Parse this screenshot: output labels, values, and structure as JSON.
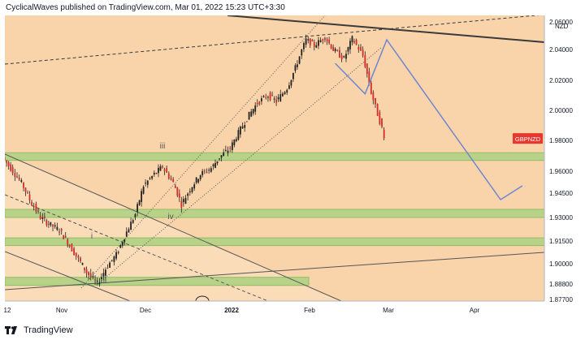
{
  "header": {
    "publisher": "CyclicalWaves published on TradingView.com, Mar 01, 2022 15:23 UTC+3:30"
  },
  "footer": {
    "brand": "TradingView",
    "logo_icon": "tradingview-logo-icon"
  },
  "colors": {
    "background": "#f9d4ab",
    "panel": "#fbe2c4",
    "zone_fill": "#b9d28a",
    "zone_border": "#8fbf60",
    "candle": "#d42b2b",
    "projection": "#6f86cf",
    "trendline": "#555555",
    "symbol_badge": "#e8372f"
  },
  "chart_data": {
    "type": "candlestick",
    "symbol": "GBPNZD",
    "currency": "NZD",
    "x_tick_labels": [
      "12",
      "Nov",
      "Dec",
      "2022",
      "Feb",
      "Mar",
      "Apr"
    ],
    "y_tick_labels": [
      "2.06000",
      "2.04000",
      "2.02000",
      "2.00000",
      "1.98000",
      "1.96000",
      "1.94500",
      "1.93000",
      "1.91500",
      "1.90000",
      "1.88800",
      "1.87700"
    ],
    "y_tick_values": [
      2.06,
      2.04,
      2.02,
      2.0,
      1.98,
      1.96,
      1.945,
      1.93,
      1.915,
      1.9,
      1.888,
      1.877
    ],
    "last_price_label": "GBPNZD",
    "wave_labels": [
      "iii",
      "iv",
      "ii",
      "i"
    ],
    "price_path": [
      {
        "x": "Oct 11",
        "y": 1.969
      },
      {
        "x": "Oct 14",
        "y": 1.962
      },
      {
        "x": "Oct 18",
        "y": 1.952
      },
      {
        "x": "Oct 21",
        "y": 1.941
      },
      {
        "x": "Oct 25",
        "y": 1.93
      },
      {
        "x": "Oct 28",
        "y": 1.926
      },
      {
        "x": "Nov 1",
        "y": 1.922
      },
      {
        "x": "Nov 4",
        "y": 1.914
      },
      {
        "x": "Nov 8",
        "y": 1.903
      },
      {
        "x": "Nov 11",
        "y": 1.895
      },
      {
        "x": "Nov 15",
        "y": 1.888
      },
      {
        "x": "Nov 18",
        "y": 1.897
      },
      {
        "x": "Nov 22",
        "y": 1.906
      },
      {
        "x": "Nov 25",
        "y": 1.918
      },
      {
        "x": "Nov 29",
        "y": 1.932
      },
      {
        "x": "Dec 2",
        "y": 1.95
      },
      {
        "x": "Dec 6",
        "y": 1.958
      },
      {
        "x": "Dec 9",
        "y": 1.963
      },
      {
        "x": "Dec 13",
        "y": 1.952
      },
      {
        "x": "Dec 16",
        "y": 1.938
      },
      {
        "x": "Dec 20",
        "y": 1.95
      },
      {
        "x": "Dec 23",
        "y": 1.958
      },
      {
        "x": "Dec 27",
        "y": 1.962
      },
      {
        "x": "Dec 30",
        "y": 1.969
      },
      {
        "x": "Jan 3",
        "y": 1.975
      },
      {
        "x": "Jan 6",
        "y": 1.985
      },
      {
        "x": "Jan 10",
        "y": 1.997
      },
      {
        "x": "Jan 13",
        "y": 2.005
      },
      {
        "x": "Jan 17",
        "y": 2.01
      },
      {
        "x": "Jan 20",
        "y": 2.006
      },
      {
        "x": "Jan 24",
        "y": 2.015
      },
      {
        "x": "Jan 27",
        "y": 2.028
      },
      {
        "x": "Jan 31",
        "y": 2.047
      },
      {
        "x": "Feb 3",
        "y": 2.043
      },
      {
        "x": "Feb 7",
        "y": 2.049
      },
      {
        "x": "Feb 10",
        "y": 2.04
      },
      {
        "x": "Feb 14",
        "y": 2.034
      },
      {
        "x": "Feb 17",
        "y": 2.048
      },
      {
        "x": "Feb 21",
        "y": 2.036
      },
      {
        "x": "Feb 24",
        "y": 2.012
      },
      {
        "x": "Feb 28",
        "y": 1.988
      },
      {
        "x": "Mar 1",
        "y": 1.981
      }
    ],
    "projection_path": [
      {
        "x": "Feb 10",
        "y": 2.031
      },
      {
        "x": "Feb 21",
        "y": 2.011
      },
      {
        "x": "Mar 1",
        "y": 2.047
      },
      {
        "x": "Apr 12",
        "y": 1.941
      },
      {
        "x": "Apr 20",
        "y": 1.95
      }
    ],
    "support_zones": [
      {
        "from": 1.967,
        "to": 1.972
      },
      {
        "from": 1.93,
        "to": 1.935
      },
      {
        "from": 1.912,
        "to": 1.917
      },
      {
        "from": 1.887,
        "to": 1.892
      }
    ],
    "grid": false,
    "legend": "none"
  }
}
